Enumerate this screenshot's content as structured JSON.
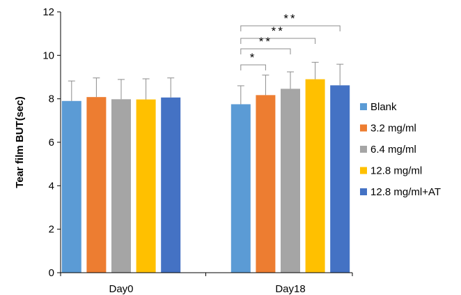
{
  "chart_data": {
    "type": "bar",
    "ylabel": "Tear film BUT(sec)",
    "ylim": [
      0,
      12
    ],
    "yticks": [
      "0",
      "2",
      "4",
      "6",
      "8",
      "10",
      "12"
    ],
    "categories": [
      "Day0",
      "Day18"
    ],
    "series": [
      {
        "name": "Blank",
        "color": "#5B9BD5",
        "values": [
          7.9,
          7.75
        ],
        "errors": [
          0.92,
          0.85
        ]
      },
      {
        "name": "3.2 mg/ml",
        "color": "#ED7D31",
        "values": [
          8.08,
          8.17
        ],
        "errors": [
          0.88,
          0.92
        ]
      },
      {
        "name": "6.4 mg/ml",
        "color": "#A5A5A5",
        "values": [
          7.98,
          8.46
        ],
        "errors": [
          0.91,
          0.78
        ]
      },
      {
        "name": "12.8 mg/ml",
        "color": "#FFC000",
        "values": [
          7.97,
          8.9
        ],
        "errors": [
          0.95,
          0.78
        ]
      },
      {
        "name": "12.8 mg/ml+AT",
        "color": "#4472C4",
        "values": [
          8.06,
          8.62
        ],
        "errors": [
          0.9,
          0.97
        ]
      }
    ],
    "significance": [
      {
        "category": "Day18",
        "from": "Blank",
        "to": "3.2 mg/ml",
        "label": "*"
      },
      {
        "category": "Day18",
        "from": "Blank",
        "to": "6.4 mg/ml",
        "label": "**"
      },
      {
        "category": "Day18",
        "from": "Blank",
        "to": "12.8 mg/ml",
        "label": "**"
      },
      {
        "category": "Day18",
        "from": "Blank",
        "to": "12.8 mg/ml+AT",
        "label": "**"
      }
    ],
    "legend_position": "right",
    "grid": false
  }
}
